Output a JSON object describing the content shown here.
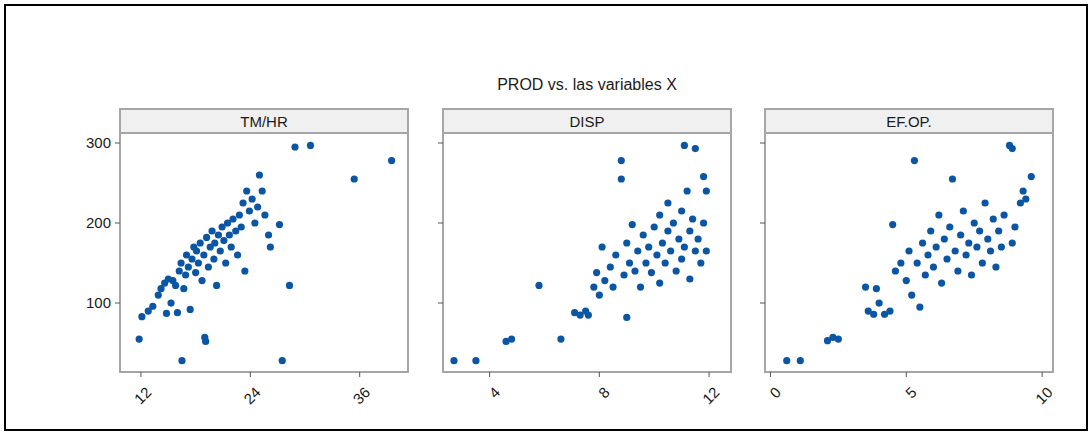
{
  "title": "PROD vs. las variables X",
  "chart_data": [
    {
      "type": "scatter",
      "title": "TM/HR",
      "color": "#0b56a4",
      "marker": "circle",
      "xlim": [
        9.7,
        41.3
      ],
      "xticks": [
        12,
        24,
        36
      ],
      "ylim": [
        13.8,
        312.5
      ],
      "yticks": [
        100,
        200,
        300
      ],
      "x": [
        11.8,
        12.1,
        12.8,
        13.3,
        13.9,
        14.2,
        14.6,
        14.8,
        15.0,
        15.3,
        15.5,
        15.8,
        16.0,
        16.2,
        16.4,
        16.5,
        16.7,
        16.9,
        17.0,
        17.2,
        17.4,
        17.6,
        17.8,
        18.0,
        18.1,
        18.3,
        18.5,
        18.7,
        18.9,
        19.0,
        19.1,
        19.2,
        19.4,
        19.6,
        19.8,
        20.0,
        20.1,
        20.3,
        20.5,
        20.7,
        20.9,
        21.1,
        21.3,
        21.5,
        21.7,
        21.9,
        22.1,
        22.4,
        22.6,
        22.8,
        23.0,
        23.2,
        23.4,
        23.6,
        23.9,
        24.2,
        24.5,
        24.8,
        25.0,
        25.3,
        25.6,
        26.0,
        26.2,
        27.2,
        27.5,
        28.3,
        28.9,
        30.6,
        35.4,
        39.5
      ],
      "values": [
        55,
        83,
        90,
        96,
        110,
        118,
        125,
        87,
        130,
        100,
        128,
        122,
        88,
        140,
        150,
        28,
        118,
        135,
        160,
        145,
        92,
        155,
        170,
        138,
        165,
        150,
        175,
        128,
        160,
        57,
        52,
        182,
        145,
        170,
        190,
        155,
        175,
        122,
        185,
        165,
        195,
        178,
        150,
        200,
        185,
        170,
        205,
        190,
        160,
        210,
        195,
        225,
        140,
        240,
        215,
        230,
        200,
        220,
        260,
        240,
        210,
        185,
        170,
        198,
        28,
        122,
        295,
        297,
        255,
        278
      ]
    },
    {
      "type": "scatter",
      "title": "DISP",
      "color": "#0b56a4",
      "marker": "circle",
      "tick_labels": "x",
      "xlim": [
        2.3,
        12.8
      ],
      "xticks": [
        4,
        8,
        12
      ],
      "ylim": [
        13.8,
        312.5
      ],
      "yticks": [
        100,
        200,
        300
      ],
      "x": [
        2.7,
        3.5,
        4.6,
        4.8,
        5.8,
        6.6,
        7.1,
        7.3,
        7.5,
        7.6,
        7.8,
        7.9,
        8.0,
        8.1,
        8.2,
        8.4,
        8.5,
        8.6,
        8.8,
        8.8,
        8.9,
        9.0,
        9.0,
        9.1,
        9.2,
        9.3,
        9.4,
        9.5,
        9.6,
        9.7,
        9.8,
        9.9,
        10.0,
        10.1,
        10.2,
        10.2,
        10.3,
        10.4,
        10.5,
        10.5,
        10.6,
        10.7,
        10.8,
        10.9,
        11.0,
        11.0,
        11.1,
        11.1,
        11.2,
        11.3,
        11.3,
        11.4,
        11.5,
        11.5,
        11.6,
        11.7,
        11.8,
        11.8,
        11.9,
        11.9
      ],
      "values": [
        28,
        28,
        52,
        55,
        122,
        55,
        88,
        85,
        90,
        85,
        120,
        138,
        110,
        170,
        128,
        145,
        120,
        160,
        278,
        255,
        135,
        175,
        82,
        150,
        198,
        140,
        165,
        120,
        185,
        150,
        170,
        138,
        195,
        160,
        210,
        125,
        175,
        150,
        190,
        225,
        165,
        200,
        140,
        180,
        215,
        155,
        297,
        170,
        240,
        190,
        130,
        205,
        293,
        165,
        180,
        150,
        258,
        200,
        240,
        165
      ]
    },
    {
      "type": "scatter",
      "title": "EF.OP.",
      "color": "#0b56a4",
      "marker": "circle",
      "tick_labels": "x",
      "xlim": [
        -0.2,
        10.4
      ],
      "xticks": [
        0,
        5,
        10
      ],
      "ylim": [
        13.8,
        312.5
      ],
      "yticks": [
        100,
        200,
        300
      ],
      "x": [
        0.6,
        1.1,
        2.1,
        2.3,
        2.5,
        3.5,
        3.6,
        3.8,
        3.9,
        4.0,
        4.2,
        4.4,
        4.5,
        4.6,
        4.8,
        5.0,
        5.1,
        5.2,
        5.3,
        5.4,
        5.5,
        5.6,
        5.7,
        5.8,
        5.9,
        6.0,
        6.1,
        6.2,
        6.3,
        6.4,
        6.5,
        6.6,
        6.7,
        6.8,
        6.9,
        7.0,
        7.1,
        7.2,
        7.3,
        7.4,
        7.5,
        7.6,
        7.7,
        7.8,
        7.9,
        8.0,
        8.1,
        8.2,
        8.3,
        8.4,
        8.5,
        8.6,
        8.8,
        8.9,
        8.9,
        9.0,
        9.2,
        9.3,
        9.4,
        9.6
      ],
      "values": [
        28,
        28,
        53,
        57,
        55,
        120,
        90,
        86,
        118,
        100,
        86,
        90,
        198,
        140,
        150,
        128,
        165,
        110,
        278,
        150,
        95,
        175,
        135,
        160,
        190,
        145,
        170,
        210,
        125,
        180,
        155,
        195,
        255,
        165,
        140,
        185,
        215,
        160,
        175,
        135,
        200,
        170,
        190,
        150,
        225,
        180,
        165,
        205,
        145,
        190,
        170,
        210,
        297,
        293,
        175,
        195,
        225,
        240,
        230,
        258
      ]
    }
  ]
}
